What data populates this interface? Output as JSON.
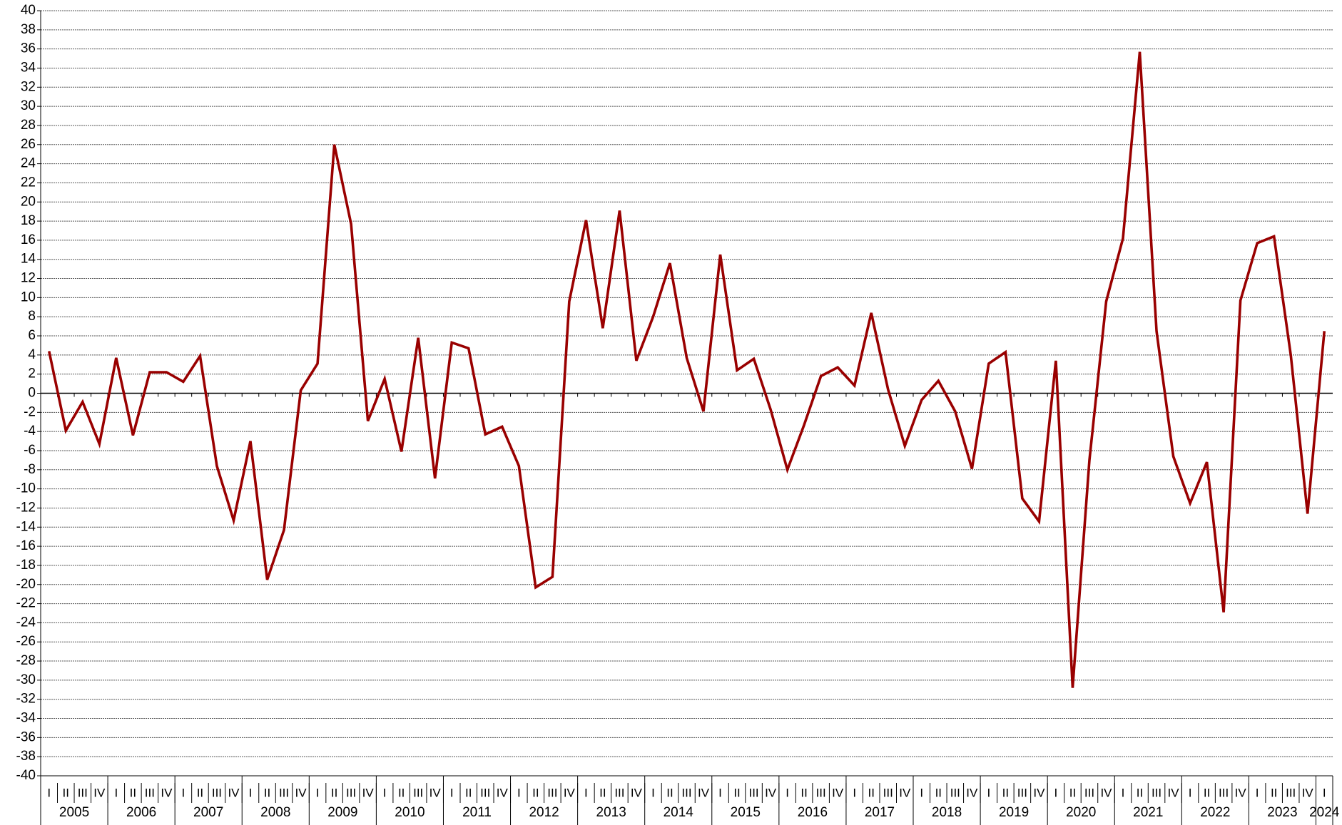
{
  "chart_data": {
    "type": "line",
    "categories": [
      "I",
      "II",
      "III",
      "IV",
      "I",
      "II",
      "III",
      "IV",
      "I",
      "II",
      "III",
      "IV",
      "I",
      "II",
      "III",
      "IV",
      "I",
      "II",
      "III",
      "IV",
      "I",
      "II",
      "III",
      "IV",
      "I",
      "II",
      "III",
      "IV",
      "I",
      "II",
      "III",
      "IV",
      "I",
      "II",
      "III",
      "IV",
      "I",
      "II",
      "III",
      "IV",
      "I",
      "II",
      "III",
      "IV",
      "I",
      "II",
      "III",
      "IV",
      "I",
      "II",
      "III",
      "IV",
      "I",
      "II",
      "III",
      "IV",
      "I",
      "II",
      "III",
      "IV",
      "I",
      "II",
      "III",
      "IV",
      "I",
      "II",
      "III",
      "IV",
      "I",
      "II",
      "III",
      "IV",
      "I",
      "II",
      "III",
      "IV",
      "I"
    ],
    "years": [
      "2005",
      "2006",
      "2007",
      "2008",
      "2009",
      "2010",
      "2011",
      "2012",
      "2013",
      "2014",
      "2015",
      "2016",
      "2017",
      "2018",
      "2019",
      "2020",
      "2021",
      "2022",
      "2023",
      "2024"
    ],
    "color": "#990000",
    "values": [
      4.4,
      -3.9,
      -0.9,
      -5.3,
      3.7,
      -4.4,
      2.2,
      2.2,
      1.2,
      3.9,
      -7.6,
      -13.3,
      -5.0,
      -19.5,
      -14.3,
      0.3,
      3.1,
      26.0,
      17.7,
      -2.9,
      1.5,
      -6.1,
      5.8,
      -8.9,
      5.3,
      4.7,
      -4.3,
      -3.5,
      -7.6,
      -20.3,
      -19.2,
      9.6,
      18.1,
      6.8,
      19.1,
      3.4,
      8.0,
      13.6,
      3.7,
      -1.9,
      14.5,
      2.4,
      3.6,
      -1.7,
      -8.0,
      -3.3,
      1.8,
      2.7,
      0.8,
      8.4,
      0.4,
      -5.5,
      -0.7,
      1.3,
      -1.9,
      -7.9,
      3.1,
      4.3,
      -11.0,
      -13.4,
      3.4,
      -30.8,
      -7.0,
      9.6,
      16.2,
      35.7,
      6.5,
      -6.6,
      -11.5,
      -7.2,
      -22.9,
      9.7,
      15.7,
      16.4,
      4.0,
      -12.6,
      6.5
    ],
    "ylim": [
      -40,
      40
    ],
    "yticks": [
      -40,
      -38,
      -36,
      -34,
      -32,
      -30,
      -28,
      -26,
      -24,
      -22,
      -20,
      -18,
      -16,
      -14,
      -12,
      -10,
      -8,
      -6,
      -4,
      -2,
      0,
      2,
      4,
      6,
      8,
      10,
      12,
      14,
      16,
      18,
      20,
      22,
      24,
      26,
      28,
      30,
      32,
      34,
      36,
      38,
      40
    ],
    "grid": true
  }
}
